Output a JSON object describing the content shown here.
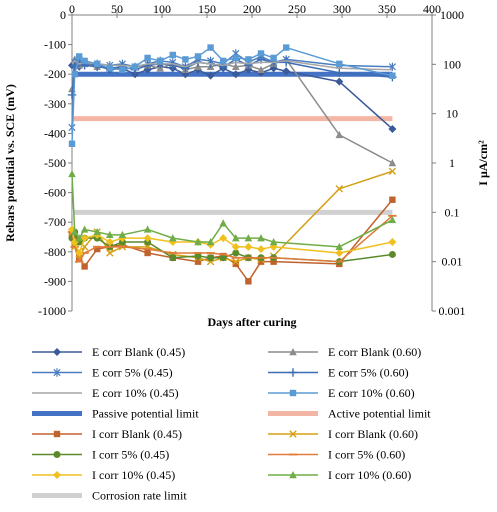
{
  "chart_data": {
    "type": "line",
    "xlabel": "Days after curing",
    "ylabel": "Rebars potential vs. SCE (mV)",
    "y2label": "I μA/cm²",
    "xlim": [
      0,
      400
    ],
    "ylim": [
      -1000,
      0
    ],
    "y2lim": [
      0.001,
      1000
    ],
    "y2scale": "log",
    "x_ticks": [
      "0",
      "50",
      "100",
      "150",
      "200",
      "250",
      "300",
      "350",
      "400"
    ],
    "y_ticks": [
      "0",
      "-100",
      "-200",
      "-300",
      "-400",
      "-500",
      "-600",
      "-700",
      "-800",
      "-900",
      "-1000"
    ],
    "y2_ticks": [
      "1000",
      "100",
      "10",
      "1",
      "0.1",
      "0.01",
      "0.001"
    ],
    "grid": false,
    "legend_position": "bottom",
    "series": [
      {
        "name": "E corr Blank (0.45)",
        "axis": "left",
        "color": "#3a5a9a",
        "marker": "diamond",
        "x": [
          0,
          3,
          8,
          14,
          28,
          42,
          56,
          70,
          84,
          98,
          112,
          126,
          140,
          154,
          168,
          182,
          196,
          210,
          224,
          238,
          297,
          356
        ],
        "y": [
          -170,
          -160,
          -175,
          -165,
          -170,
          -185,
          -180,
          -200,
          -185,
          -175,
          -180,
          -200,
          -185,
          -205,
          -180,
          -200,
          -185,
          -195,
          -180,
          -190,
          -225,
          -385
        ]
      },
      {
        "name": "E corr Blank (0.60)",
        "axis": "left",
        "color": "#8c8c8c",
        "marker": "triangle",
        "x": [
          0,
          3,
          8,
          14,
          28,
          42,
          56,
          70,
          84,
          98,
          112,
          126,
          140,
          154,
          168,
          182,
          196,
          210,
          224,
          238,
          297,
          356
        ],
        "y": [
          -250,
          -150,
          -170,
          -165,
          -175,
          -180,
          -185,
          -175,
          -170,
          -180,
          -165,
          -185,
          -175,
          -175,
          -165,
          -175,
          -170,
          -185,
          -165,
          -150,
          -405,
          -500
        ]
      },
      {
        "name": "E corr 5% (0.45)",
        "axis": "left",
        "color": "#4a7ec0",
        "marker": "star",
        "x": [
          0,
          3,
          8,
          14,
          28,
          42,
          56,
          70,
          84,
          98,
          112,
          126,
          140,
          154,
          168,
          182,
          196,
          210,
          224,
          238,
          297,
          356
        ],
        "y": [
          -380,
          -160,
          -150,
          -165,
          -165,
          -170,
          -165,
          -175,
          -165,
          -155,
          -160,
          -175,
          -150,
          -155,
          -165,
          -130,
          -160,
          -140,
          -160,
          -150,
          -170,
          -175
        ]
      },
      {
        "name": "E corr 5% (0.60)",
        "axis": "left",
        "color": "#3c6eb4",
        "marker": "plus",
        "x": [
          0,
          3,
          8,
          14,
          28,
          42,
          56,
          70,
          84,
          98,
          112,
          126,
          140,
          154,
          168,
          182,
          196,
          210,
          224,
          238,
          297,
          356
        ],
        "y": [
          -270,
          -175,
          -160,
          -170,
          -175,
          -180,
          -175,
          -185,
          -170,
          -165,
          -170,
          -180,
          -160,
          -165,
          -175,
          -150,
          -170,
          -150,
          -160,
          -160,
          -195,
          -210
        ]
      },
      {
        "name": "E corr 10% (0.45)",
        "axis": "left",
        "color": "#a6a6a6",
        "marker": "none",
        "x": [
          0,
          3,
          8,
          14,
          28,
          42,
          56,
          70,
          84,
          98,
          112,
          126,
          140,
          154,
          168,
          182,
          196,
          210,
          224,
          238,
          297,
          356
        ],
        "y": [
          -165,
          -155,
          -165,
          -160,
          -165,
          -170,
          -170,
          -175,
          -165,
          -165,
          -165,
          -175,
          -160,
          -165,
          -170,
          -160,
          -165,
          -160,
          -160,
          -155,
          -180,
          -185
        ]
      },
      {
        "name": "E corr 10% (0.60)",
        "axis": "left",
        "color": "#5b9bd5",
        "marker": "square",
        "x": [
          0,
          3,
          8,
          14,
          28,
          42,
          56,
          70,
          84,
          98,
          112,
          126,
          140,
          154,
          168,
          182,
          196,
          210,
          224,
          238,
          297,
          356
        ],
        "y": [
          -435,
          -200,
          -140,
          -155,
          -165,
          -180,
          -185,
          -175,
          -145,
          -155,
          -135,
          -150,
          -140,
          -110,
          -155,
          -145,
          -150,
          -130,
          -145,
          -110,
          -165,
          -205
        ]
      },
      {
        "name": "I corr Blank (0.45)",
        "axis": "right",
        "color": "#c0622c",
        "marker": "square",
        "x": [
          0,
          3,
          8,
          14,
          28,
          42,
          56,
          84,
          112,
          140,
          154,
          168,
          182,
          196,
          210,
          224,
          297,
          356
        ],
        "y": [
          0.035,
          0.03,
          0.012,
          0.008,
          0.018,
          0.02,
          0.022,
          0.015,
          0.012,
          0.01,
          0.012,
          0.013,
          0.009,
          0.004,
          0.01,
          0.01,
          0.009,
          0.18
        ]
      },
      {
        "name": "I corr Blank (0.60)",
        "axis": "right",
        "color": "#d4a017",
        "marker": "x",
        "x": [
          0,
          3,
          8,
          14,
          28,
          42,
          56,
          84,
          112,
          140,
          154,
          168,
          182,
          196,
          210,
          224,
          297,
          356
        ],
        "y": [
          0.04,
          0.02,
          0.011,
          0.02,
          0.04,
          0.015,
          0.02,
          0.02,
          0.014,
          0.012,
          0.01,
          0.012,
          0.01,
          0.012,
          0.011,
          0.013,
          0.3,
          0.68
        ]
      },
      {
        "name": "I corr 5% (0.45)",
        "axis": "right",
        "color": "#5a8a2c",
        "marker": "circle",
        "x": [
          0,
          3,
          8,
          14,
          28,
          42,
          56,
          84,
          112,
          140,
          154,
          168,
          182,
          196,
          210,
          224,
          297,
          356
        ],
        "y": [
          0.03,
          0.04,
          0.025,
          0.03,
          0.03,
          0.02,
          0.025,
          0.025,
          0.012,
          0.013,
          0.012,
          0.012,
          0.015,
          0.012,
          0.012,
          0.012,
          0.01,
          0.014
        ]
      },
      {
        "name": "I corr 5% (0.60)",
        "axis": "right",
        "color": "#e07b3a",
        "marker": "dash",
        "x": [
          0,
          3,
          8,
          14,
          28,
          42,
          56,
          84,
          112,
          140,
          154,
          168,
          182,
          196,
          210,
          224,
          297,
          356
        ],
        "y": [
          0.04,
          0.02,
          0.01,
          0.015,
          0.02,
          0.02,
          0.02,
          0.018,
          0.015,
          0.015,
          0.015,
          0.014,
          0.012,
          0.012,
          0.012,
          0.012,
          0.01,
          0.085
        ]
      },
      {
        "name": "I corr 10% (0.45)",
        "axis": "right",
        "color": "#f0c020",
        "marker": "diamond",
        "x": [
          0,
          3,
          8,
          14,
          28,
          42,
          56,
          84,
          112,
          140,
          154,
          168,
          182,
          196,
          210,
          224,
          297,
          356
        ],
        "y": [
          0.045,
          0.025,
          0.015,
          0.03,
          0.035,
          0.025,
          0.03,
          0.03,
          0.025,
          0.025,
          0.022,
          0.03,
          0.02,
          0.02,
          0.018,
          0.02,
          0.015,
          0.025
        ]
      },
      {
        "name": "I corr 10% (0.60)",
        "axis": "right",
        "color": "#70ad47",
        "marker": "triangle",
        "x": [
          0,
          3,
          8,
          14,
          28,
          42,
          56,
          84,
          112,
          140,
          154,
          168,
          182,
          196,
          210,
          224,
          297,
          356
        ],
        "y": [
          0.6,
          0.04,
          0.03,
          0.045,
          0.04,
          0.035,
          0.035,
          0.045,
          0.03,
          0.025,
          0.025,
          0.06,
          0.03,
          0.03,
          0.03,
          0.025,
          0.02,
          0.07
        ]
      }
    ],
    "reference_lines": [
      {
        "name": "Passive potential limit",
        "axis": "left",
        "value": -200,
        "color": "#4472c4",
        "x_range": [
          0,
          356
        ]
      },
      {
        "name": "Active potential limit",
        "axis": "left",
        "value": -350,
        "color": "#f4b6a4",
        "x_range": [
          0,
          356
        ]
      },
      {
        "name": "Corrosion rate limit",
        "axis": "right",
        "value": 0.1,
        "color": "#d0d0d0",
        "x_range": [
          0,
          356
        ]
      }
    ],
    "legend": [
      "E corr Blank (0.45)",
      "E corr Blank (0.60)",
      "E corr 5% (0.45)",
      "E corr 5% (0.60)",
      "E corr 10% (0.45)",
      "E corr 10% (0.60)",
      "Passive potential limit",
      "Active potential limit",
      "I corr Blank (0.45)",
      "I corr Blank (0.60)",
      "I corr 5% (0.45)",
      "I corr 5% (0.60)",
      "I corr 10% (0.45)",
      "I corr 10% (0.60)",
      "Corrosion rate limit"
    ]
  }
}
